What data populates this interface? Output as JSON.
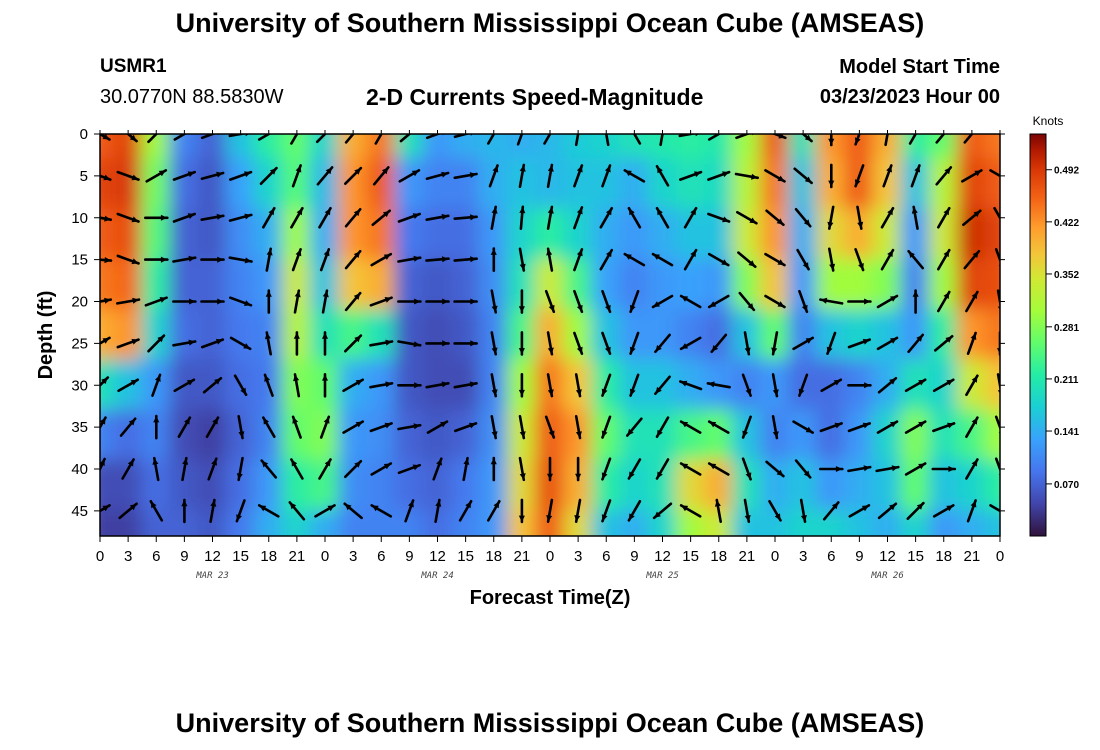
{
  "header": {
    "title": "University of Southern Mississippi Ocean Cube (AMSEAS)",
    "station": "USMR1",
    "coords": "30.0770N  88.5830W",
    "subtitle": "2-D Currents Speed-Magnitude",
    "model_start_label": "Model Start Time",
    "model_start_date": "03/23/2023 Hour 00"
  },
  "footer": {
    "title": "University of Southern Mississippi Ocean Cube (AMSEAS)"
  },
  "chart_data": {
    "type": "heatmap",
    "title": "2-D Currents Speed-Magnitude",
    "xlabel": "Forecast Time(Z)",
    "ylabel": "Depth (ft)",
    "x_tick_labels": [
      "0",
      "3",
      "6",
      "9",
      "12",
      "15",
      "18",
      "21",
      "0",
      "3",
      "6",
      "9",
      "12",
      "15",
      "18",
      "21",
      "0",
      "3",
      "6",
      "9",
      "12",
      "15",
      "18",
      "21",
      "0",
      "3",
      "6",
      "9",
      "12",
      "15",
      "18",
      "21",
      "0"
    ],
    "x_range_hours": [
      0,
      96
    ],
    "day_labels": [
      {
        "text": "MAR 23",
        "hour": 12
      },
      {
        "text": "MAR 24",
        "hour": 36
      },
      {
        "text": "MAR 25",
        "hour": 60
      },
      {
        "text": "MAR 26",
        "hour": 84
      }
    ],
    "y_ticks": [
      0,
      5,
      10,
      15,
      20,
      25,
      30,
      35,
      40,
      45
    ],
    "y_tick_labels": [
      "0",
      "5",
      "10",
      "15",
      "20",
      "25",
      "30",
      "35",
      "40",
      "45"
    ],
    "ylim": [
      0,
      48
    ],
    "y_inverted": true,
    "colorbar": {
      "unit": "Knots",
      "range": [
        0,
        0.54
      ],
      "tick_values": [
        0.07,
        0.141,
        0.211,
        0.281,
        0.352,
        0.422,
        0.492
      ],
      "tick_labels": [
        "0.070",
        "0.141",
        "0.211",
        "0.281",
        "0.352",
        "0.422",
        "0.492"
      ]
    },
    "column_depths_ft": [
      0,
      6,
      12,
      18,
      24,
      30,
      36,
      42,
      48
    ],
    "speed_columns": [
      {
        "hour": 0,
        "speeds": [
          0.46,
          0.48,
          0.46,
          0.44,
          0.4,
          0.2,
          0.1,
          0.05,
          0.04
        ]
      },
      {
        "hour": 3,
        "speeds": [
          0.48,
          0.49,
          0.47,
          0.45,
          0.42,
          0.16,
          0.08,
          0.05,
          0.04
        ]
      },
      {
        "hour": 6,
        "speeds": [
          0.3,
          0.27,
          0.25,
          0.22,
          0.18,
          0.12,
          0.1,
          0.08,
          0.07
        ]
      },
      {
        "hour": 9,
        "speeds": [
          0.1,
          0.08,
          0.07,
          0.07,
          0.08,
          0.06,
          0.05,
          0.06,
          0.07
        ]
      },
      {
        "hour": 12,
        "speeds": [
          0.07,
          0.06,
          0.06,
          0.07,
          0.07,
          0.06,
          0.04,
          0.05,
          0.06
        ]
      },
      {
        "hour": 15,
        "speeds": [
          0.16,
          0.13,
          0.11,
          0.1,
          0.09,
          0.08,
          0.07,
          0.08,
          0.09
        ]
      },
      {
        "hour": 18,
        "speeds": [
          0.22,
          0.18,
          0.14,
          0.12,
          0.1,
          0.09,
          0.1,
          0.12,
          0.14
        ]
      },
      {
        "hour": 21,
        "speeds": [
          0.26,
          0.25,
          0.3,
          0.34,
          0.32,
          0.28,
          0.26,
          0.22,
          0.18
        ]
      },
      {
        "hour": 24,
        "speeds": [
          0.18,
          0.15,
          0.14,
          0.16,
          0.2,
          0.26,
          0.28,
          0.24,
          0.14
        ]
      },
      {
        "hour": 27,
        "speeds": [
          0.4,
          0.42,
          0.42,
          0.38,
          0.24,
          0.14,
          0.12,
          0.11,
          0.1
        ]
      },
      {
        "hour": 30,
        "speeds": [
          0.44,
          0.46,
          0.44,
          0.4,
          0.2,
          0.12,
          0.11,
          0.1,
          0.1
        ]
      },
      {
        "hour": 33,
        "speeds": [
          0.2,
          0.12,
          0.09,
          0.07,
          0.06,
          0.06,
          0.07,
          0.08,
          0.1
        ]
      },
      {
        "hour": 36,
        "speeds": [
          0.12,
          0.1,
          0.08,
          0.06,
          0.05,
          0.05,
          0.06,
          0.07,
          0.08
        ]
      },
      {
        "hour": 39,
        "speeds": [
          0.14,
          0.1,
          0.08,
          0.07,
          0.06,
          0.05,
          0.07,
          0.09,
          0.1
        ]
      },
      {
        "hour": 42,
        "speeds": [
          0.15,
          0.14,
          0.12,
          0.11,
          0.1,
          0.1,
          0.11,
          0.12,
          0.12
        ]
      },
      {
        "hour": 45,
        "speeds": [
          0.14,
          0.16,
          0.18,
          0.2,
          0.24,
          0.3,
          0.34,
          0.36,
          0.38
        ]
      },
      {
        "hour": 48,
        "speeds": [
          0.15,
          0.15,
          0.22,
          0.34,
          0.4,
          0.44,
          0.46,
          0.47,
          0.46
        ]
      },
      {
        "hour": 51,
        "speeds": [
          0.17,
          0.16,
          0.18,
          0.24,
          0.3,
          0.38,
          0.42,
          0.4,
          0.36
        ]
      },
      {
        "hour": 54,
        "speeds": [
          0.18,
          0.16,
          0.14,
          0.13,
          0.16,
          0.22,
          0.26,
          0.22,
          0.16
        ]
      },
      {
        "hour": 57,
        "speeds": [
          0.2,
          0.14,
          0.12,
          0.1,
          0.12,
          0.16,
          0.2,
          0.18,
          0.14
        ]
      },
      {
        "hour": 60,
        "speeds": [
          0.21,
          0.18,
          0.14,
          0.12,
          0.12,
          0.16,
          0.2,
          0.2,
          0.18
        ]
      },
      {
        "hour": 63,
        "speeds": [
          0.22,
          0.2,
          0.16,
          0.13,
          0.1,
          0.14,
          0.24,
          0.36,
          0.3
        ]
      },
      {
        "hour": 66,
        "speeds": [
          0.21,
          0.19,
          0.16,
          0.12,
          0.08,
          0.12,
          0.26,
          0.4,
          0.34
        ]
      },
      {
        "hour": 69,
        "speeds": [
          0.3,
          0.32,
          0.34,
          0.28,
          0.16,
          0.1,
          0.16,
          0.2,
          0.16
        ]
      },
      {
        "hour": 72,
        "speeds": [
          0.46,
          0.44,
          0.42,
          0.38,
          0.26,
          0.12,
          0.1,
          0.14,
          0.16
        ]
      },
      {
        "hour": 75,
        "speeds": [
          0.2,
          0.16,
          0.14,
          0.12,
          0.1,
          0.08,
          0.12,
          0.16,
          0.18
        ]
      },
      {
        "hour": 78,
        "speeds": [
          0.42,
          0.4,
          0.36,
          0.3,
          0.16,
          0.08,
          0.08,
          0.12,
          0.18
        ]
      },
      {
        "hour": 81,
        "speeds": [
          0.46,
          0.46,
          0.4,
          0.3,
          0.18,
          0.1,
          0.12,
          0.14,
          0.16
        ]
      },
      {
        "hour": 84,
        "speeds": [
          0.4,
          0.38,
          0.34,
          0.28,
          0.16,
          0.14,
          0.18,
          0.16,
          0.14
        ]
      },
      {
        "hour": 87,
        "speeds": [
          0.22,
          0.16,
          0.12,
          0.1,
          0.12,
          0.2,
          0.28,
          0.26,
          0.18
        ]
      },
      {
        "hour": 90,
        "speeds": [
          0.26,
          0.32,
          0.34,
          0.3,
          0.22,
          0.18,
          0.2,
          0.16,
          0.12
        ]
      },
      {
        "hour": 93,
        "speeds": [
          0.46,
          0.48,
          0.5,
          0.48,
          0.42,
          0.34,
          0.24,
          0.18,
          0.14
        ]
      },
      {
        "hour": 96,
        "speeds": [
          0.44,
          0.46,
          0.48,
          0.47,
          0.44,
          0.38,
          0.3,
          0.22,
          0.16
        ]
      }
    ],
    "vector_depths_ft": [
      0,
      5,
      10,
      15,
      20,
      25,
      30,
      35,
      40,
      45
    ],
    "vector_directions_deg": [
      [
        120,
        110,
        100,
        95,
        80,
        60,
        45,
        30,
        25,
        60
      ],
      [
        130,
        110,
        110,
        110,
        80,
        70,
        60,
        40,
        30,
        50
      ],
      [
        45,
        60,
        90,
        90,
        70,
        45,
        20,
        0,
        350,
        330
      ],
      [
        60,
        70,
        70,
        80,
        90,
        80,
        60,
        30,
        10,
        0
      ],
      [
        70,
        75,
        80,
        90,
        90,
        70,
        50,
        30,
        20,
        10
      ],
      [
        80,
        70,
        75,
        100,
        110,
        120,
        150,
        170,
        190,
        200
      ],
      [
        60,
        45,
        30,
        10,
        0,
        350,
        340,
        330,
        320,
        300
      ],
      [
        30,
        20,
        30,
        20,
        10,
        0,
        350,
        340,
        330,
        320
      ],
      [
        45,
        40,
        30,
        20,
        10,
        0,
        0,
        20,
        30,
        60
      ],
      [
        40,
        45,
        40,
        40,
        40,
        45,
        60,
        60,
        45,
        310
      ],
      [
        30,
        40,
        50,
        60,
        70,
        80,
        80,
        70,
        60,
        300
      ],
      [
        50,
        60,
        70,
        80,
        90,
        100,
        90,
        80,
        70,
        20
      ],
      [
        70,
        75,
        80,
        85,
        90,
        90,
        80,
        60,
        20,
        10
      ],
      [
        75,
        80,
        85,
        85,
        90,
        90,
        80,
        70,
        10,
        30
      ],
      [
        30,
        20,
        10,
        0,
        170,
        170,
        170,
        170,
        0,
        30
      ],
      [
        20,
        10,
        5,
        170,
        180,
        180,
        180,
        170,
        170,
        180
      ],
      [
        30,
        10,
        10,
        350,
        160,
        170,
        170,
        160,
        180,
        190
      ],
      [
        10,
        20,
        20,
        20,
        160,
        160,
        170,
        170,
        180,
        190
      ],
      [
        350,
        20,
        30,
        30,
        160,
        160,
        200,
        200,
        200,
        200
      ],
      [
        330,
        300,
        330,
        300,
        200,
        200,
        200,
        220,
        210,
        210
      ],
      [
        10,
        330,
        330,
        300,
        240,
        220,
        220,
        210,
        210,
        230
      ],
      [
        80,
        70,
        30,
        30,
        300,
        240,
        290,
        300,
        300,
        300
      ],
      [
        60,
        70,
        110,
        120,
        240,
        220,
        280,
        300,
        300,
        350
      ],
      [
        70,
        100,
        120,
        130,
        140,
        170,
        160,
        200,
        160,
        170
      ],
      [
        110,
        120,
        130,
        120,
        120,
        190,
        170,
        170,
        130,
        150
      ],
      [
        130,
        130,
        140,
        150,
        160,
        60,
        200,
        120,
        140,
        170
      ],
      [
        180,
        180,
        190,
        170,
        280,
        200,
        60,
        70,
        90,
        40
      ],
      [
        200,
        200,
        170,
        160,
        90,
        70,
        90,
        70,
        80,
        60
      ],
      [
        10,
        20,
        30,
        30,
        60,
        60,
        50,
        60,
        80,
        50
      ],
      [
        30,
        20,
        350,
        320,
        0,
        40,
        60,
        60,
        60,
        45
      ],
      [
        40,
        40,
        30,
        30,
        30,
        50,
        60,
        70,
        90,
        60
      ],
      [
        40,
        60,
        50,
        40,
        30,
        20,
        30,
        30,
        30,
        20
      ],
      [
        120,
        120,
        150,
        160,
        170,
        180,
        170,
        160,
        160,
        120
      ]
    ]
  }
}
